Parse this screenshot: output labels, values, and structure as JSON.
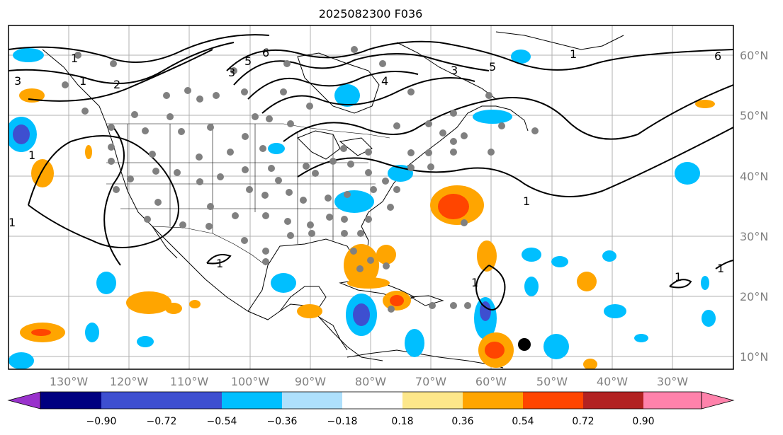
{
  "title": "2025082300 F036",
  "lat_labels": [
    "60°N",
    "50°N",
    "40°N",
    "30°N",
    "20°N",
    "10°N"
  ],
  "lon_labels": [
    "130°W",
    "120°W",
    "110°W",
    "100°W",
    "90°W",
    "80°W",
    "70°W",
    "60°W",
    "50°W",
    "40°W",
    "30°W"
  ],
  "colorbar": {
    "tick_labels": [
      "−0.90",
      "−0.72",
      "−0.54",
      "−0.36",
      "−0.18",
      "0.18",
      "0.36",
      "0.54",
      "0.72",
      "0.90"
    ],
    "colors": [
      "#9932cc",
      "#000080",
      "#3e4fd0",
      "#00bfff",
      "#aee0fc",
      "#ffffff",
      "#fde78a",
      "#ffa500",
      "#ff4500",
      "#b22222",
      "#ff82ab"
    ]
  },
  "contour_labels": [
    "1",
    "3",
    "2",
    "1",
    "6",
    "5",
    "4",
    "3",
    "5",
    "6",
    "1",
    "3",
    "1",
    "1",
    "1",
    "1",
    "1",
    "1",
    "1"
  ],
  "colors": {
    "land_outline": "#000000",
    "grid": "#b0b0b0",
    "station_dot": "#808080",
    "storm_marker": "#000000"
  }
}
